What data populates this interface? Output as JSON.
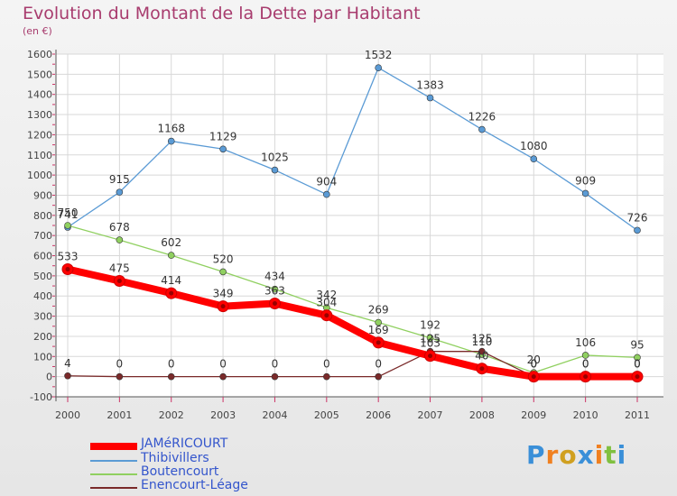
{
  "chart_data": {
    "type": "line",
    "title": "Evolution du Montant de la Dette par Habitant",
    "subtitle": "(en €)",
    "x": [
      2000,
      2001,
      2002,
      2003,
      2004,
      2005,
      2006,
      2007,
      2008,
      2009,
      2010,
      2011
    ],
    "ylim": [
      -100,
      1600
    ],
    "yticks": [
      -100,
      0,
      100,
      200,
      300,
      400,
      500,
      600,
      700,
      800,
      900,
      1000,
      1100,
      1200,
      1300,
      1400,
      1500,
      1600
    ],
    "grid": true,
    "legend_position": "bottom-left",
    "series": [
      {
        "name": "Thibivillers",
        "color": "#5b9bd5",
        "values": [
          741,
          915,
          1168,
          1129,
          1025,
          904,
          1532,
          1383,
          1226,
          1080,
          909,
          726
        ],
        "labels": [
          "741",
          "915",
          "1168",
          "1129",
          "1025",
          "904",
          "1532",
          "1383",
          "1226",
          "1080",
          "909",
          "726"
        ]
      },
      {
        "name": "Boutencourt",
        "color": "#90d060",
        "values": [
          750,
          678,
          602,
          520,
          434,
          342,
          269,
          192,
          110,
          20,
          106,
          95
        ],
        "labels": [
          "750",
          "678",
          "602",
          "520",
          "434",
          "342",
          "269",
          "192",
          "110",
          "20",
          "106",
          "95"
        ]
      },
      {
        "name": "Enencourt-Léage",
        "color": "#7a2a2a",
        "values": [
          4,
          0,
          0,
          0,
          0,
          0,
          0,
          125,
          125,
          0,
          0,
          0
        ],
        "labels": [
          "4",
          "0",
          "0",
          "0",
          "0",
          "0",
          "0",
          "125",
          "125",
          "0",
          "0",
          "0"
        ]
      },
      {
        "name": "JAMéRICOURT",
        "color": "#ff0000",
        "values": [
          533,
          475,
          414,
          349,
          363,
          304,
          169,
          103,
          40,
          0,
          0,
          0
        ],
        "labels": [
          "533",
          "475",
          "414",
          "349",
          "363",
          "304",
          "169",
          "103",
          "40",
          "0",
          "0",
          "0"
        ]
      }
    ]
  },
  "legend": [
    {
      "name": "JAMéRICOURT",
      "color": "#ff0000"
    },
    {
      "name": "Thibivillers",
      "color": "#5b9bd5"
    },
    {
      "name": "Boutencourt",
      "color": "#90d060"
    },
    {
      "name": "Enencourt-Léage",
      "color": "#7a2a2a"
    }
  ],
  "logo": {
    "text": "Proxiti"
  }
}
